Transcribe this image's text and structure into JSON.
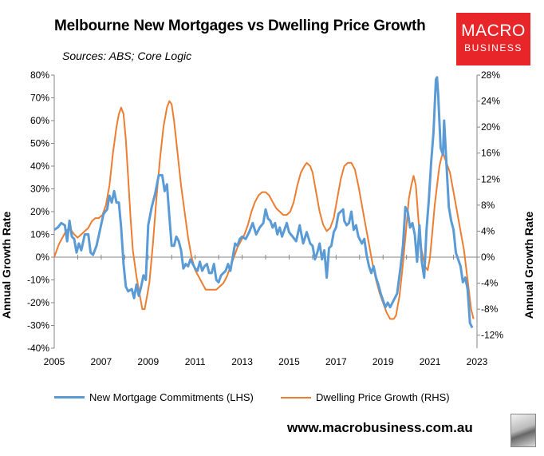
{
  "title": "Melbourne New Mortgages vs Dwelling Price Growth",
  "subtitle": "Sources: ABS; Core Logic",
  "logo": {
    "line1": "MACRO",
    "line2": "BUSINESS"
  },
  "footer": "www.macrobusiness.com.au",
  "colors": {
    "lhs": "#5b9bd5",
    "rhs": "#ed7d31",
    "logo": "#e8262a"
  },
  "chart_data": {
    "type": "line",
    "ylabel": "Annual Growth Rate",
    "y2label": "Annual Growth Rate",
    "xlim": [
      2005,
      2023
    ],
    "ylim": [
      -40,
      80
    ],
    "y2lim": [
      -12,
      28
    ],
    "x_ticks": [
      "2005",
      "2007",
      "2009",
      "2011",
      "2013",
      "2015",
      "2017",
      "2019",
      "2021",
      "2023"
    ],
    "y_ticks": [
      "80%",
      "70%",
      "60%",
      "50%",
      "40%",
      "30%",
      "20%",
      "10%",
      "0%",
      "-10%",
      "-20%",
      "-30%",
      "-40%"
    ],
    "y2_ticks": [
      "28%",
      "24%",
      "20%",
      "16%",
      "12%",
      "8%",
      "4%",
      "0%",
      "-4%",
      "-8%",
      "-12%"
    ],
    "grid": false,
    "legend_position": "bottom",
    "series": [
      {
        "name": "New Mortgage Commitments (LHS)",
        "axis": "left",
        "points": [
          [
            2005.0,
            12
          ],
          [
            2005.15,
            13
          ],
          [
            2005.3,
            15
          ],
          [
            2005.45,
            14
          ],
          [
            2005.55,
            7
          ],
          [
            2005.65,
            16
          ],
          [
            2005.75,
            9
          ],
          [
            2005.85,
            8
          ],
          [
            2005.95,
            2
          ],
          [
            2006.05,
            6
          ],
          [
            2006.15,
            3
          ],
          [
            2006.3,
            10
          ],
          [
            2006.45,
            10
          ],
          [
            2006.55,
            2
          ],
          [
            2006.65,
            1
          ],
          [
            2006.8,
            5
          ],
          [
            2006.95,
            12
          ],
          [
            2007.1,
            19
          ],
          [
            2007.25,
            21
          ],
          [
            2007.35,
            27
          ],
          [
            2007.45,
            24
          ],
          [
            2007.55,
            29
          ],
          [
            2007.65,
            24
          ],
          [
            2007.75,
            24
          ],
          [
            2007.85,
            13
          ],
          [
            2007.95,
            -3
          ],
          [
            2008.05,
            -13
          ],
          [
            2008.15,
            -15
          ],
          [
            2008.3,
            -14
          ],
          [
            2008.4,
            -18
          ],
          [
            2008.5,
            -12
          ],
          [
            2008.6,
            -17
          ],
          [
            2008.7,
            -13
          ],
          [
            2008.8,
            -8
          ],
          [
            2008.9,
            -10
          ],
          [
            2009.0,
            14
          ],
          [
            2009.15,
            22
          ],
          [
            2009.3,
            28
          ],
          [
            2009.45,
            36
          ],
          [
            2009.6,
            36
          ],
          [
            2009.7,
            29
          ],
          [
            2009.8,
            32
          ],
          [
            2009.9,
            18
          ],
          [
            2010.0,
            5
          ],
          [
            2010.1,
            5
          ],
          [
            2010.2,
            9
          ],
          [
            2010.3,
            7
          ],
          [
            2010.4,
            3
          ],
          [
            2010.5,
            -5
          ],
          [
            2010.6,
            -3
          ],
          [
            2010.7,
            -4
          ],
          [
            2010.8,
            -1
          ],
          [
            2010.9,
            -3
          ],
          [
            2011.0,
            -5
          ],
          [
            2011.1,
            -6
          ],
          [
            2011.2,
            -2
          ],
          [
            2011.3,
            -6
          ],
          [
            2011.4,
            -4
          ],
          [
            2011.5,
            -3
          ],
          [
            2011.6,
            -7
          ],
          [
            2011.7,
            -7
          ],
          [
            2011.8,
            -3
          ],
          [
            2011.9,
            -10
          ],
          [
            2012.0,
            -11
          ],
          [
            2012.1,
            -8
          ],
          [
            2012.2,
            -7
          ],
          [
            2012.3,
            -6
          ],
          [
            2012.4,
            -3
          ],
          [
            2012.5,
            -6
          ],
          [
            2012.6,
            0
          ],
          [
            2012.7,
            6
          ],
          [
            2012.8,
            5
          ],
          [
            2012.9,
            8
          ],
          [
            2013.0,
            9
          ],
          [
            2013.15,
            8
          ],
          [
            2013.3,
            11
          ],
          [
            2013.45,
            15
          ],
          [
            2013.6,
            10
          ],
          [
            2013.75,
            13
          ],
          [
            2013.9,
            15
          ],
          [
            2014.0,
            21
          ],
          [
            2014.1,
            17
          ],
          [
            2014.2,
            16
          ],
          [
            2014.3,
            13
          ],
          [
            2014.4,
            15
          ],
          [
            2014.5,
            10
          ],
          [
            2014.6,
            13
          ],
          [
            2014.7,
            9
          ],
          [
            2014.8,
            12
          ],
          [
            2014.9,
            15
          ],
          [
            2015.0,
            11
          ],
          [
            2015.15,
            9
          ],
          [
            2015.3,
            7
          ],
          [
            2015.45,
            14
          ],
          [
            2015.6,
            6
          ],
          [
            2015.75,
            11
          ],
          [
            2015.9,
            6
          ],
          [
            2016.0,
            5
          ],
          [
            2016.1,
            -1
          ],
          [
            2016.2,
            2
          ],
          [
            2016.3,
            6
          ],
          [
            2016.4,
            -1
          ],
          [
            2016.5,
            3
          ],
          [
            2016.6,
            -9
          ],
          [
            2016.7,
            4
          ],
          [
            2016.8,
            5
          ],
          [
            2016.9,
            11
          ],
          [
            2017.0,
            13
          ],
          [
            2017.1,
            19
          ],
          [
            2017.2,
            20
          ],
          [
            2017.3,
            21
          ],
          [
            2017.35,
            16
          ],
          [
            2017.45,
            14
          ],
          [
            2017.55,
            15
          ],
          [
            2017.65,
            20
          ],
          [
            2017.75,
            12
          ],
          [
            2017.85,
            14
          ],
          [
            2017.95,
            9
          ],
          [
            2018.1,
            6
          ],
          [
            2018.2,
            8
          ],
          [
            2018.3,
            1
          ],
          [
            2018.4,
            -4
          ],
          [
            2018.5,
            -7
          ],
          [
            2018.6,
            -4
          ],
          [
            2018.7,
            -9
          ],
          [
            2018.8,
            -12
          ],
          [
            2018.9,
            -16
          ],
          [
            2019.0,
            -19
          ],
          [
            2019.1,
            -22
          ],
          [
            2019.2,
            -20
          ],
          [
            2019.3,
            -22
          ],
          [
            2019.45,
            -19
          ],
          [
            2019.6,
            -16
          ],
          [
            2019.75,
            -4
          ],
          [
            2019.85,
            5
          ],
          [
            2019.95,
            22
          ],
          [
            2020.05,
            20
          ],
          [
            2020.15,
            13
          ],
          [
            2020.25,
            15
          ],
          [
            2020.35,
            10
          ],
          [
            2020.45,
            -2
          ],
          [
            2020.55,
            14
          ],
          [
            2020.65,
            -2
          ],
          [
            2020.75,
            -9
          ],
          [
            2020.85,
            12
          ],
          [
            2020.95,
            25
          ],
          [
            2021.05,
            42
          ],
          [
            2021.15,
            55
          ],
          [
            2021.25,
            78
          ],
          [
            2021.3,
            79
          ],
          [
            2021.35,
            71
          ],
          [
            2021.45,
            48
          ],
          [
            2021.55,
            45
          ],
          [
            2021.6,
            60
          ],
          [
            2021.7,
            41
          ],
          [
            2021.8,
            22
          ],
          [
            2021.9,
            16
          ],
          [
            2022.0,
            12
          ],
          [
            2022.1,
            2
          ],
          [
            2022.2,
            -1
          ],
          [
            2022.3,
            -4
          ],
          [
            2022.4,
            -11
          ],
          [
            2022.5,
            -9
          ],
          [
            2022.6,
            -14
          ],
          [
            2022.7,
            -29
          ],
          [
            2022.8,
            -31
          ]
        ]
      },
      {
        "name": "Dwelling Price Growth (RHS)",
        "axis": "right",
        "points": [
          [
            2005.0,
            0
          ],
          [
            2005.1,
            1
          ],
          [
            2005.2,
            2
          ],
          [
            2005.35,
            3
          ],
          [
            2005.5,
            4
          ],
          [
            2005.65,
            4.5
          ],
          [
            2005.75,
            4
          ],
          [
            2005.85,
            3.5
          ],
          [
            2006.0,
            3
          ],
          [
            2006.15,
            3.5
          ],
          [
            2006.3,
            4
          ],
          [
            2006.45,
            4.5
          ],
          [
            2006.6,
            5.5
          ],
          [
            2006.75,
            6
          ],
          [
            2006.9,
            6
          ],
          [
            2007.05,
            6.5
          ],
          [
            2007.2,
            8
          ],
          [
            2007.35,
            11
          ],
          [
            2007.5,
            16
          ],
          [
            2007.65,
            20
          ],
          [
            2007.75,
            22
          ],
          [
            2007.85,
            23
          ],
          [
            2007.95,
            22
          ],
          [
            2008.05,
            18
          ],
          [
            2008.15,
            12
          ],
          [
            2008.25,
            6
          ],
          [
            2008.35,
            1
          ],
          [
            2008.5,
            -3
          ],
          [
            2008.65,
            -6
          ],
          [
            2008.75,
            -8
          ],
          [
            2008.85,
            -8
          ],
          [
            2008.95,
            -6
          ],
          [
            2009.05,
            -4
          ],
          [
            2009.2,
            2
          ],
          [
            2009.35,
            9
          ],
          [
            2009.5,
            15
          ],
          [
            2009.65,
            20
          ],
          [
            2009.8,
            23
          ],
          [
            2009.9,
            24
          ],
          [
            2010.0,
            23.5
          ],
          [
            2010.1,
            21
          ],
          [
            2010.25,
            16
          ],
          [
            2010.4,
            11
          ],
          [
            2010.55,
            7
          ],
          [
            2010.7,
            3
          ],
          [
            2010.85,
            0
          ],
          [
            2011.0,
            -2
          ],
          [
            2011.15,
            -3
          ],
          [
            2011.3,
            -4
          ],
          [
            2011.45,
            -5
          ],
          [
            2011.6,
            -5
          ],
          [
            2011.75,
            -5
          ],
          [
            2011.9,
            -5
          ],
          [
            2012.05,
            -4.5
          ],
          [
            2012.2,
            -4
          ],
          [
            2012.35,
            -3
          ],
          [
            2012.5,
            -1.5
          ],
          [
            2012.65,
            0
          ],
          [
            2012.8,
            1.5
          ],
          [
            2012.95,
            2.5
          ],
          [
            2013.1,
            3.5
          ],
          [
            2013.25,
            5
          ],
          [
            2013.4,
            7
          ],
          [
            2013.55,
            8.5
          ],
          [
            2013.7,
            9.5
          ],
          [
            2013.85,
            10
          ],
          [
            2014.0,
            10
          ],
          [
            2014.15,
            9.5
          ],
          [
            2014.3,
            8.5
          ],
          [
            2014.45,
            7.5
          ],
          [
            2014.6,
            7
          ],
          [
            2014.75,
            6.5
          ],
          [
            2014.9,
            6.5
          ],
          [
            2015.05,
            7
          ],
          [
            2015.2,
            8.5
          ],
          [
            2015.35,
            11
          ],
          [
            2015.5,
            13
          ],
          [
            2015.65,
            14
          ],
          [
            2015.75,
            14.5
          ],
          [
            2015.9,
            14
          ],
          [
            2016.0,
            13
          ],
          [
            2016.15,
            10
          ],
          [
            2016.3,
            7
          ],
          [
            2016.45,
            5
          ],
          [
            2016.6,
            4
          ],
          [
            2016.75,
            4.5
          ],
          [
            2016.9,
            6
          ],
          [
            2017.05,
            9
          ],
          [
            2017.2,
            12
          ],
          [
            2017.35,
            14
          ],
          [
            2017.5,
            14.5
          ],
          [
            2017.65,
            14.5
          ],
          [
            2017.8,
            13.5
          ],
          [
            2017.95,
            11
          ],
          [
            2018.1,
            8
          ],
          [
            2018.25,
            5
          ],
          [
            2018.4,
            2
          ],
          [
            2018.55,
            -1
          ],
          [
            2018.7,
            -3.5
          ],
          [
            2018.85,
            -5.5
          ],
          [
            2019.0,
            -7
          ],
          [
            2019.15,
            -8.5
          ],
          [
            2019.3,
            -9.5
          ],
          [
            2019.45,
            -9.5
          ],
          [
            2019.55,
            -9
          ],
          [
            2019.7,
            -6
          ],
          [
            2019.85,
            -1
          ],
          [
            2020.0,
            5
          ],
          [
            2020.1,
            9
          ],
          [
            2020.2,
            11
          ],
          [
            2020.3,
            12.5
          ],
          [
            2020.4,
            11
          ],
          [
            2020.5,
            6
          ],
          [
            2020.6,
            2
          ],
          [
            2020.7,
            0
          ],
          [
            2020.8,
            -1.5
          ],
          [
            2020.9,
            -2
          ],
          [
            2021.0,
            0
          ],
          [
            2021.1,
            4
          ],
          [
            2021.2,
            8
          ],
          [
            2021.3,
            11
          ],
          [
            2021.4,
            14
          ],
          [
            2021.5,
            15.5
          ],
          [
            2021.55,
            16
          ],
          [
            2021.65,
            15
          ],
          [
            2021.75,
            14
          ],
          [
            2021.85,
            13
          ],
          [
            2022.0,
            10
          ],
          [
            2022.15,
            7
          ],
          [
            2022.3,
            4
          ],
          [
            2022.45,
            1
          ],
          [
            2022.55,
            -2
          ],
          [
            2022.65,
            -5
          ],
          [
            2022.75,
            -8
          ],
          [
            2022.85,
            -9.5
          ]
        ]
      }
    ]
  }
}
